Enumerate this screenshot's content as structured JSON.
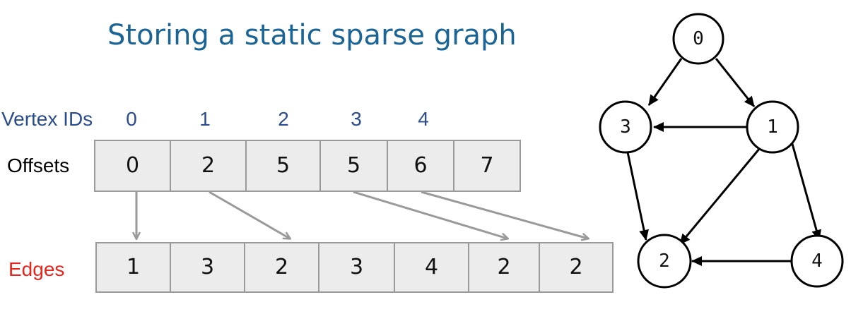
{
  "title": "Storing a static sparse graph",
  "vertex_ids": {
    "label": "Vertex IDs",
    "ids": [
      "0",
      "1",
      "2",
      "3",
      "4"
    ]
  },
  "offsets": {
    "label": "Offsets",
    "values": [
      "0",
      "2",
      "5",
      "5",
      "6",
      "7"
    ]
  },
  "edges": {
    "label": "Edges",
    "values": [
      "1",
      "3",
      "2",
      "3",
      "4",
      "2",
      "2"
    ]
  },
  "graph": {
    "nodes": [
      "0",
      "1",
      "2",
      "3",
      "4"
    ],
    "edges": [
      [
        "0",
        "3"
      ],
      [
        "0",
        "1"
      ],
      [
        "1",
        "3"
      ],
      [
        "1",
        "2"
      ],
      [
        "1",
        "4"
      ],
      [
        "3",
        "2"
      ],
      [
        "4",
        "2"
      ]
    ]
  },
  "colors": {
    "title": "#1a6496",
    "vertex_ids": "#2a4c8c",
    "edges_label": "#e8241c",
    "cell_fill": "#ececec",
    "cell_border": "#9a9a9a",
    "pointer_arrow": "#9a9a9a"
  }
}
